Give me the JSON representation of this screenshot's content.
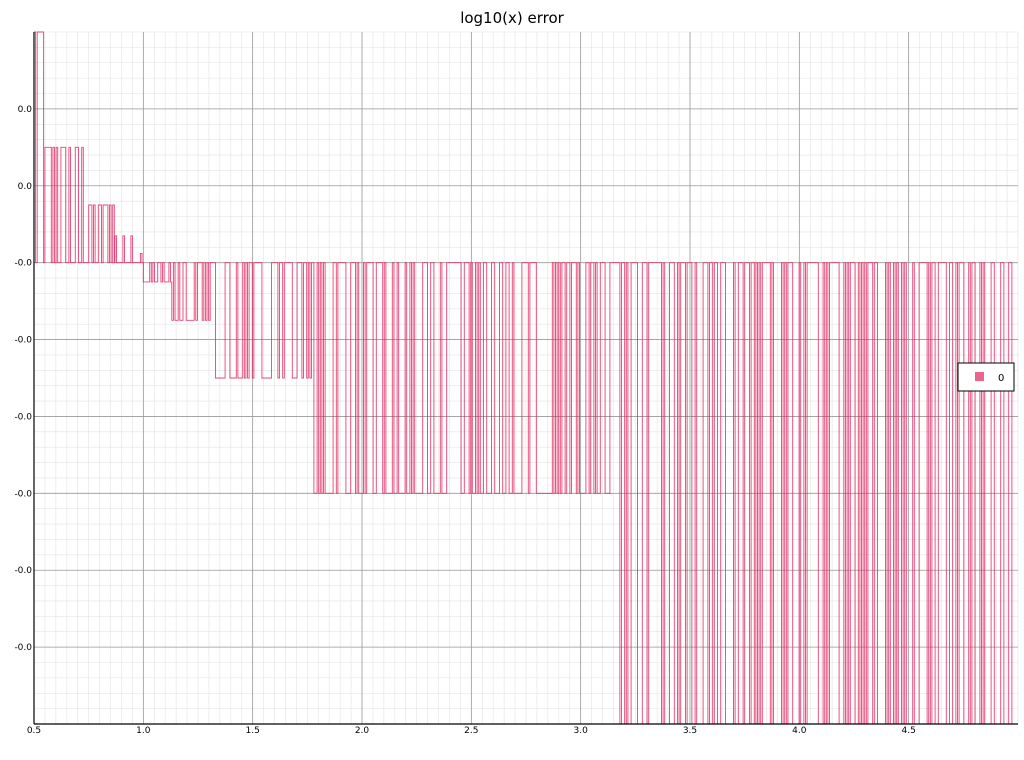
{
  "chart_data": {
    "type": "line",
    "title": "log10(x) error",
    "xlabel": "",
    "ylabel": "",
    "xlim": [
      0.5,
      5.0
    ],
    "ylim": [
      -6,
      3
    ],
    "grid": true,
    "x_ticks": [
      "0.5",
      "1.0",
      "1.5",
      "2.0",
      "2.5",
      "3.0",
      "3.5",
      "4.0",
      "4.5"
    ],
    "x_tick_values": [
      0.5,
      1.0,
      1.5,
      2.0,
      2.5,
      3.0,
      3.5,
      4.0,
      4.5
    ],
    "y_ticks": [
      "0.0",
      "0.0",
      "-0.0",
      "-0.0",
      "-0.0",
      "-0.0",
      "-0.0",
      "-0.0"
    ],
    "y_tick_values": [
      2,
      1,
      0,
      -1,
      -2,
      -3,
      -4,
      -5
    ],
    "legend": {
      "placement": "right",
      "entries": [
        "0"
      ]
    },
    "series": [
      {
        "name": "0",
        "color": "#e0245e",
        "levels": [
          {
            "from": 0.5,
            "to": 0.55,
            "value": 3.0
          },
          {
            "from": 0.55,
            "to": 0.75,
            "value": 1.5
          },
          {
            "from": 0.75,
            "to": 0.87,
            "value": 0.75
          },
          {
            "from": 0.87,
            "to": 0.95,
            "value": 0.35
          },
          {
            "from": 0.95,
            "to": 1.0,
            "value": 0.12
          },
          {
            "from": 1.0,
            "to": 1.13,
            "value": -0.25
          },
          {
            "from": 1.13,
            "to": 1.33,
            "value": -0.75
          },
          {
            "from": 1.33,
            "to": 1.78,
            "value": -1.5
          },
          {
            "from": 1.78,
            "to": 3.15,
            "value": -3.0
          },
          {
            "from": 3.15,
            "to": 5.0,
            "value": -6.0
          }
        ],
        "baseline": 0
      }
    ]
  }
}
